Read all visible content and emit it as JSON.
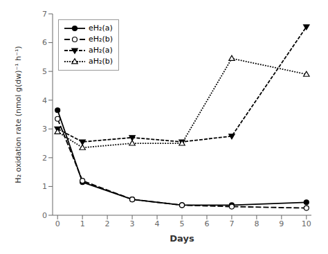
{
  "chart_data": {
    "type": "line",
    "xlabel": "Days",
    "ylabel": "H₂ oxidation rate (nmol g(dw)⁻¹ h⁻¹)",
    "x": [
      0,
      1,
      3,
      5,
      7,
      10
    ],
    "series": [
      {
        "name": "eH₂(a)",
        "color": "black",
        "marker": "circle",
        "line_style": "solid",
        "values": [
          3.65,
          1.15,
          0.55,
          0.35,
          0.35,
          0.45
        ]
      },
      {
        "name": "eH₂(b)",
        "color": "black",
        "marker": "circle-open",
        "line_style": "long-dash",
        "values": [
          3.35,
          1.2,
          0.55,
          0.35,
          0.3,
          0.25
        ]
      },
      {
        "name": "aH₂(a)",
        "color": "black",
        "marker": "triangle-down",
        "line_style": "dashed",
        "values": [
          3.0,
          2.55,
          2.7,
          2.55,
          2.75,
          6.55
        ]
      },
      {
        "name": "aH₂(b)",
        "color": "black",
        "marker": "triangle-up-open",
        "line_style": "dotted",
        "values": [
          2.9,
          2.35,
          2.5,
          2.5,
          5.45,
          4.9
        ]
      }
    ],
    "xlim": [
      -0.2,
      10.2
    ],
    "xticks": [
      0,
      1,
      2,
      3,
      4,
      5,
      6,
      7,
      8,
      9,
      10
    ],
    "ylim": [
      0,
      7
    ],
    "yticks": [
      0,
      1,
      2,
      3,
      4,
      5,
      6,
      7
    ],
    "grid": false,
    "legend": "upper left"
  }
}
